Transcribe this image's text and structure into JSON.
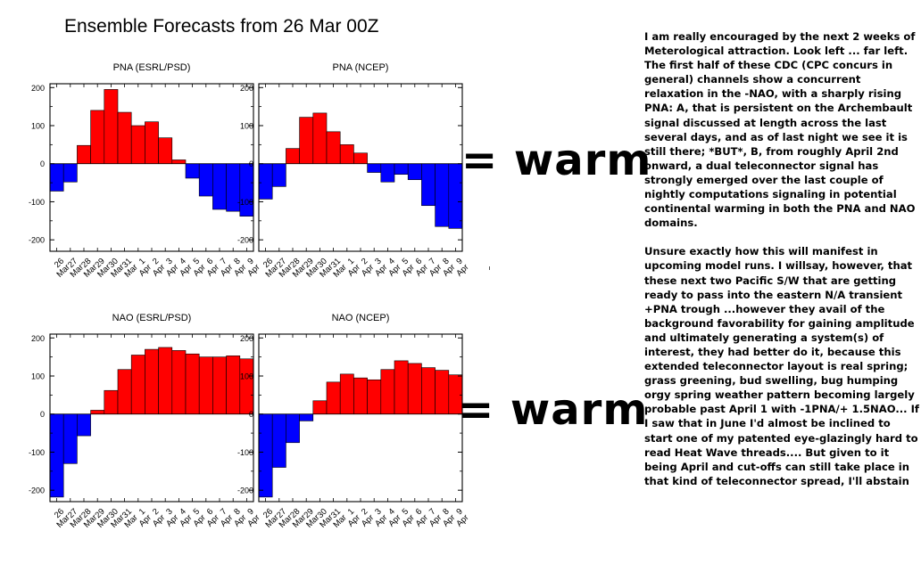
{
  "figure": {
    "title": "Ensemble Forecasts from 26 Mar 00Z"
  },
  "annotations": {
    "warm_top": "= warm",
    "warm_bottom": "= warm"
  },
  "commentary": {
    "paragraph_1": "I am really encouraged by the next 2 weeks of Meterological attraction.  Look left ... far left.  The first half of these CDC (CPC concurs in general) channels show a concurrent relaxation in the -NAO, with a sharply rising PNA:  A, that is persistent on the Archembault signal discussed at length across the last several days, and as of last night we see it is still there;  *BUT*, B, from roughly April 2nd onward, a dual teleconnector signal has strongly emerged over the last couple of nightly computations signaling in potential continental warming in both the PNA and NAO domains.",
    "paragraph_2": "Unsure exactly how this will manifest in upcoming model runs.  I willsay,  however, that these next two Pacific S/W that are getting ready to pass into the eastern N/A transient +PNA trough ...however they avail of the background favorability for gaining amplitude and ultimately generating a system(s) of interest, they had better do it, because this extended teleconnector layout is real spring; grass greening, bud swelling, bug humping orgy spring weather pattern becoming largely probable past April 1 with -1PNA/+ 1.5NAO...  If I saw that in June I'd almost be inclined to start one of my patented eye-glazingly hard to read Heat Wave threads.... But given to it being April and cut-offs can still take place in that kind of teleconnector spread, I'll abstain"
  },
  "colors": {
    "positive": "#ff0000",
    "negative": "#0000ff"
  },
  "chart_data": [
    {
      "type": "bar",
      "title": "PNA (ESRL/PSD)",
      "categories": [
        "26 Mar",
        "27 Mar",
        "28 Mar",
        "29 Mar",
        "30 Mar",
        "31 Mar",
        "1 Apr",
        "2 Apr",
        "3 Apr",
        "4 Apr",
        "5 Apr",
        "6 Apr",
        "7 Apr",
        "8 Apr",
        "9 Apr"
      ],
      "values": [
        -72,
        -48,
        48,
        140,
        195,
        135,
        100,
        110,
        68,
        10,
        -38,
        -85,
        -120,
        -125,
        -138
      ],
      "ylim": [
        -230,
        210
      ],
      "yticks": [
        -200,
        -100,
        0,
        100,
        200
      ],
      "grid": false
    },
    {
      "type": "bar",
      "title": "PNA (NCEP)",
      "categories": [
        "26 Mar",
        "27 Mar",
        "28 Mar",
        "29 Mar",
        "30 Mar",
        "31 Mar",
        "1 Apr",
        "2 Apr",
        "3 Apr",
        "4 Apr",
        "5 Apr",
        "6 Apr",
        "7 Apr",
        "8 Apr",
        "9 Apr"
      ],
      "values": [
        -93,
        -60,
        40,
        122,
        133,
        84,
        50,
        28,
        -23,
        -48,
        -28,
        -42,
        -110,
        -165,
        -170
      ],
      "ylim": [
        -230,
        210
      ],
      "yticks": [
        -200,
        -100,
        0,
        100,
        200
      ],
      "grid": false
    },
    {
      "type": "bar",
      "title": "NAO (ESRL/PSD)",
      "categories": [
        "26 Mar",
        "27 Mar",
        "28 Mar",
        "29 Mar",
        "30 Mar",
        "31 Mar",
        "1 Apr",
        "2 Apr",
        "3 Apr",
        "4 Apr",
        "5 Apr",
        "6 Apr",
        "7 Apr",
        "8 Apr",
        "9 Apr"
      ],
      "values": [
        -218,
        -130,
        -57,
        10,
        62,
        117,
        155,
        170,
        175,
        167,
        158,
        150,
        150,
        153,
        145
      ],
      "ylim": [
        -230,
        210
      ],
      "yticks": [
        -200,
        -100,
        0,
        100,
        200
      ],
      "grid": false
    },
    {
      "type": "bar",
      "title": "NAO (NCEP)",
      "categories": [
        "26 Mar",
        "27 Mar",
        "28 Mar",
        "29 Mar",
        "30 Mar",
        "31 Mar",
        "1 Apr",
        "2 Apr",
        "3 Apr",
        "4 Apr",
        "5 Apr",
        "6 Apr",
        "7 Apr",
        "8 Apr",
        "9 Apr"
      ],
      "values": [
        -218,
        -140,
        -75,
        -18,
        35,
        84,
        105,
        95,
        90,
        117,
        140,
        133,
        122,
        115,
        103
      ],
      "ylim": [
        -230,
        210
      ],
      "yticks": [
        -200,
        -100,
        0,
        100,
        200
      ],
      "grid": false
    }
  ]
}
